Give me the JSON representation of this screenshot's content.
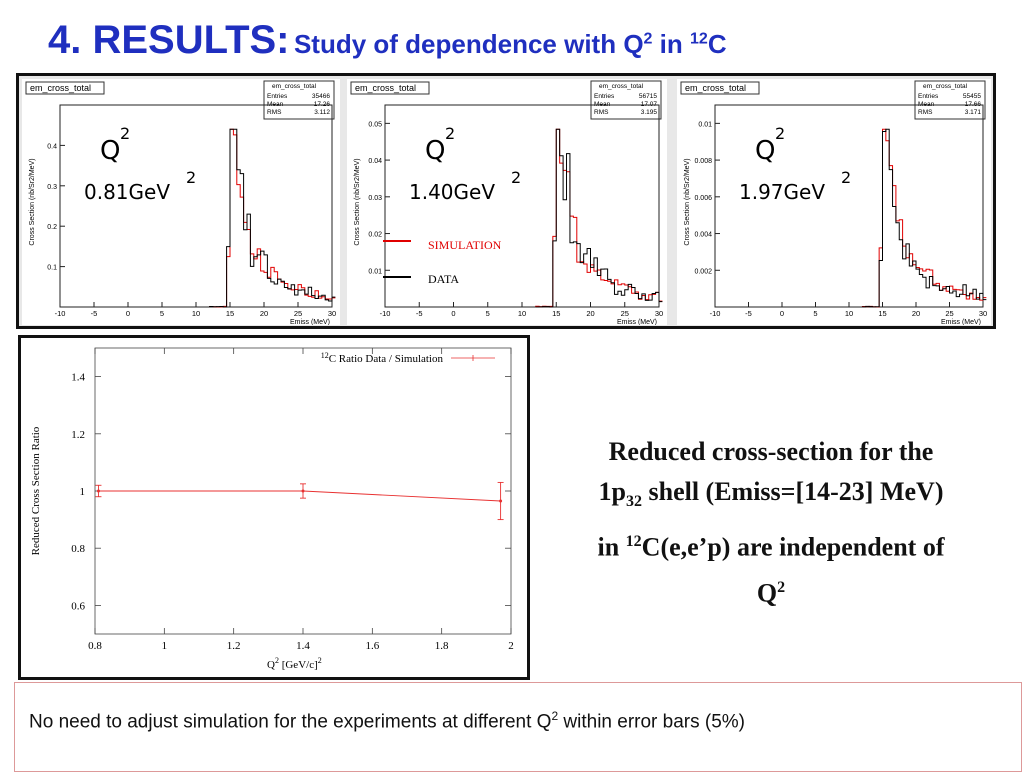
{
  "slide": {
    "title_main": "4. RESULTS:",
    "title_sub": "Study of dependence with Q",
    "title_sub_sup": "2",
    "title_sub_mid": " in ",
    "title_sub_sup2": "12",
    "title_sub_end": "C"
  },
  "histograms": [
    {
      "tab": "em_cross_total",
      "q2_label": "Q",
      "q2_sup": "2",
      "q2_value": "0.81GeV",
      "q2_value_sup": "2",
      "stats": {
        "title": "em_cross_total",
        "rows": [
          [
            "Entries",
            "35466"
          ],
          [
            "Mean",
            "17.26"
          ],
          [
            "RMS",
            "3.112"
          ]
        ]
      },
      "ylabel": "Cross Section (nb/Sr2/MeV)",
      "xlabel": "Emiss (MeV)",
      "xticks": [
        "-10",
        "-5",
        "0",
        "5",
        "10",
        "15",
        "20",
        "25",
        "30"
      ],
      "yticks": [
        "0.1",
        "0.2",
        "0.3",
        "0.4"
      ],
      "ymax": 0.5
    },
    {
      "tab": "em_cross_total",
      "q2_label": "Q",
      "q2_sup": "2",
      "q2_value": "1.40GeV",
      "q2_value_sup": "2",
      "stats": {
        "title": "em_cross_total",
        "rows": [
          [
            "Entries",
            "56715"
          ],
          [
            "Mean",
            "17.07"
          ],
          [
            "RMS",
            "3.195"
          ]
        ]
      },
      "ylabel": "Cross Section (nb/Sr2/MeV)",
      "xlabel": "Emiss (MeV)",
      "xticks": [
        "-10",
        "-5",
        "0",
        "5",
        "10",
        "15",
        "20",
        "25",
        "30"
      ],
      "yticks": [
        "0.01",
        "0.02",
        "0.03",
        "0.04",
        "0.05"
      ],
      "ymax": 0.055
    },
    {
      "tab": "em_cross_total",
      "q2_label": "Q",
      "q2_sup": "2",
      "q2_value": "1.97GeV",
      "q2_value_sup": "2",
      "stats": {
        "title": "em_cross_total",
        "rows": [
          [
            "Entries",
            "55455"
          ],
          [
            "Mean",
            "17.66"
          ],
          [
            "RMS",
            "3.171"
          ]
        ]
      },
      "ylabel": "Cross Section (nb/Sr2/MeV)",
      "xlabel": "Emiss (MeV)",
      "xticks": [
        "-10",
        "-5",
        "0",
        "5",
        "10",
        "15",
        "20",
        "25",
        "30"
      ],
      "yticks": [
        "0.002",
        "0.004",
        "0.006",
        "0.008",
        "0.01"
      ],
      "ymax": 0.011
    }
  ],
  "legend": {
    "simulation": "SIMULATION",
    "data": "DATA",
    "simulation_color": "#e00000",
    "data_color": "#000000"
  },
  "chart_data": {
    "type": "line",
    "legend_label": "C Ratio Data / Simulation",
    "legend_sup": "12",
    "xlabel": "Q",
    "xlabel_sup": "2",
    "xlabel_unit": " [GeV/c]",
    "xlabel_unit_sup": "2",
    "ylabel": "Reduced Cross Section Ratio",
    "xlim": [
      0.8,
      2.0
    ],
    "ylim": [
      0.5,
      1.5
    ],
    "xticks": [
      0.8,
      1,
      1.2,
      1.4,
      1.6,
      1.8,
      2
    ],
    "xtick_labels": [
      "0.8",
      "1",
      "1.2",
      "1.4",
      "1.6",
      "1.8",
      "2"
    ],
    "yticks": [
      0.6,
      0.8,
      1,
      1.2,
      1.4
    ],
    "ytick_labels": [
      "0.6",
      "0.8",
      "1",
      "1.2",
      "1.4"
    ],
    "series": [
      {
        "x": [
          0.81,
          1.4,
          1.97
        ],
        "y": [
          1.0,
          1.0,
          0.965
        ],
        "err": [
          0.02,
          0.025,
          0.065
        ],
        "color": "#e83030"
      }
    ]
  },
  "conclusion": {
    "line1": "Reduced cross-section for the",
    "line2a": "1p",
    "line2_sub": "32",
    "line2b": " shell (Emiss=[14-23] MeV)",
    "line3a": "in ",
    "line3_sup": "12",
    "line3b": "C(e,e’p) are independent of",
    "line4": "Q",
    "line4_sup": "2"
  },
  "note": {
    "text_a": "No need to adjust simulation for the experiments at different Q",
    "sup": "2",
    "text_b": " within error bars (5%)"
  }
}
